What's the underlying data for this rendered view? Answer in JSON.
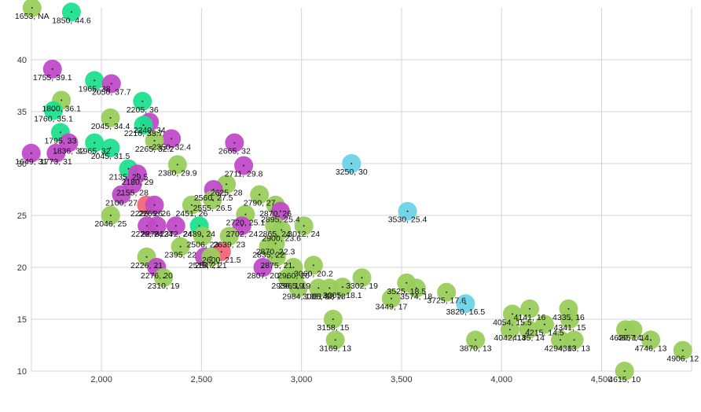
{
  "chart_data": {
    "type": "scatter",
    "title": "",
    "xlabel": "",
    "ylabel": "",
    "xlim": [
      1650,
      4950
    ],
    "ylim": [
      10,
      45
    ],
    "grid": true,
    "legend": "none",
    "x_ticks": [
      {
        "value": 2000,
        "label": "2,000"
      },
      {
        "value": 2500,
        "label": "2,500"
      },
      {
        "value": 3000,
        "label": "3,000"
      },
      {
        "value": 3500,
        "label": "3,500"
      },
      {
        "value": 4000,
        "label": "4,000"
      },
      {
        "value": 4500,
        "label": "4,500"
      }
    ],
    "y_ticks": [
      {
        "value": 10,
        "label": "10"
      },
      {
        "value": 15,
        "label": "15"
      },
      {
        "value": 20,
        "label": "20"
      },
      {
        "value": 25,
        "label": "25"
      },
      {
        "value": 30,
        "label": "30"
      },
      {
        "value": 35,
        "label": "35"
      },
      {
        "value": 40,
        "label": "40"
      }
    ],
    "colors": {
      "green": "#9acd5c",
      "teal": "#1ee08e",
      "purple": "#c04bc8",
      "cyan": "#6dd3e8",
      "red": "#f26678"
    },
    "points": [
      {
        "x": 1653,
        "y": 45,
        "label": "1653, NA",
        "color": "green"
      },
      {
        "x": 1850,
        "y": 44.6,
        "label": "1850, 44.6",
        "color": "teal"
      },
      {
        "x": 1755,
        "y": 39.1,
        "label": "1755, 39.1",
        "color": "purple"
      },
      {
        "x": 1965,
        "y": 38,
        "label": "1965, 38",
        "color": "teal"
      },
      {
        "x": 2050,
        "y": 37.7,
        "label": "2050, 37.7",
        "color": "purple"
      },
      {
        "x": 1800,
        "y": 36.1,
        "label": "1800, 36.1",
        "color": "green"
      },
      {
        "x": 1760,
        "y": 35.1,
        "label": "1760, 35.1",
        "color": "teal"
      },
      {
        "x": 2205,
        "y": 36,
        "label": "2205, 36",
        "color": "teal"
      },
      {
        "x": 2045,
        "y": 34.4,
        "label": "2045, 34.4",
        "color": "green"
      },
      {
        "x": 2240,
        "y": 34,
        "label": "2240, 34",
        "color": "purple"
      },
      {
        "x": 2210,
        "y": 33.7,
        "label": "2210, 33.7",
        "color": "teal"
      },
      {
        "x": 1795,
        "y": 33,
        "label": "1795, 33",
        "color": "teal"
      },
      {
        "x": 2350,
        "y": 32.4,
        "label": "2350, 32.4",
        "color": "purple"
      },
      {
        "x": 2265,
        "y": 32.2,
        "label": "2265, 32.2",
        "color": "green"
      },
      {
        "x": 1965,
        "y": 32,
        "label": "1965, 32",
        "color": "teal"
      },
      {
        "x": 1836,
        "y": 32,
        "label": "1836, 32",
        "color": "purple"
      },
      {
        "x": 2665,
        "y": 32,
        "label": "2665, 32",
        "color": "purple"
      },
      {
        "x": 2045,
        "y": 31.5,
        "label": "2045, 31.5",
        "color": "teal"
      },
      {
        "x": 1649,
        "y": 31,
        "label": "1649, 31",
        "color": "purple"
      },
      {
        "x": 1773,
        "y": 31,
        "label": "1773, 31",
        "color": "purple"
      },
      {
        "x": 2380,
        "y": 29.9,
        "label": "2380, 29.9",
        "color": "green"
      },
      {
        "x": 2711,
        "y": 29.8,
        "label": "2711, 29.8",
        "color": "purple"
      },
      {
        "x": 3250,
        "y": 30,
        "label": "3250, 30",
        "color": "cyan"
      },
      {
        "x": 2135,
        "y": 29.5,
        "label": "2135, 29.5",
        "color": "teal"
      },
      {
        "x": 2180,
        "y": 29,
        "label": "2180, 29",
        "color": "purple"
      },
      {
        "x": 2155,
        "y": 28,
        "label": "2155, 28",
        "color": "purple"
      },
      {
        "x": 2625,
        "y": 28,
        "label": "2625, 28",
        "color": "green"
      },
      {
        "x": 2560,
        "y": 27.5,
        "label": "2560, 27.5",
        "color": "purple"
      },
      {
        "x": 2100,
        "y": 27,
        "label": "2100, 27",
        "color": "purple"
      },
      {
        "x": 2790,
        "y": 27,
        "label": "2790, 27",
        "color": "green"
      },
      {
        "x": 2555,
        "y": 26.5,
        "label": "2555, 26.5",
        "color": "green"
      },
      {
        "x": 2225,
        "y": 26,
        "label": "2225, 26",
        "color": "red"
      },
      {
        "x": 2265,
        "y": 26,
        "label": "2265, 26",
        "color": "purple"
      },
      {
        "x": 2451,
        "y": 26,
        "label": "2451, 26",
        "color": "green"
      },
      {
        "x": 2870,
        "y": 26,
        "label": "2870, 26",
        "color": "green"
      },
      {
        "x": 2046,
        "y": 25,
        "label": "2046, 25",
        "color": "green"
      },
      {
        "x": 2895,
        "y": 25.4,
        "label": "2895, 25.4",
        "color": "purple"
      },
      {
        "x": 3530,
        "y": 25.4,
        "label": "3530, 25.4",
        "color": "cyan"
      },
      {
        "x": 2720,
        "y": 25.1,
        "label": "2720, 25.1",
        "color": "green"
      },
      {
        "x": 2228,
        "y": 24,
        "label": "2228, 24",
        "color": "purple"
      },
      {
        "x": 2278,
        "y": 24,
        "label": "2278, 24",
        "color": "purple"
      },
      {
        "x": 2372,
        "y": 24,
        "label": "2372, 24",
        "color": "purple"
      },
      {
        "x": 2489,
        "y": 24,
        "label": "2489, 24",
        "color": "teal"
      },
      {
        "x": 2702,
        "y": 24,
        "label": "2702, 24",
        "color": "purple"
      },
      {
        "x": 2865,
        "y": 24,
        "label": "2865, 24",
        "color": "green"
      },
      {
        "x": 3012,
        "y": 24,
        "label": "3012, 24",
        "color": "green"
      },
      {
        "x": 2900,
        "y": 23.6,
        "label": "2900, 23.6",
        "color": "green"
      },
      {
        "x": 2506,
        "y": 23,
        "label": "2506, 23",
        "color": "green"
      },
      {
        "x": 2639,
        "y": 23,
        "label": "2639, 23",
        "color": "green"
      },
      {
        "x": 2395,
        "y": 22,
        "label": "2395, 22",
        "color": "green"
      },
      {
        "x": 2835,
        "y": 22,
        "label": "2835, 22",
        "color": "green"
      },
      {
        "x": 2870,
        "y": 22.3,
        "label": "2870, 22.3",
        "color": "green"
      },
      {
        "x": 2600,
        "y": 21.5,
        "label": "2600, 21.5",
        "color": "red"
      },
      {
        "x": 2515,
        "y": 21,
        "label": "2515, 21",
        "color": "purple"
      },
      {
        "x": 2547,
        "y": 21,
        "label": "2547, 21",
        "color": "green"
      },
      {
        "x": 2226,
        "y": 21,
        "label": "2226, 21",
        "color": "green"
      },
      {
        "x": 2875,
        "y": 21,
        "label": "2875, 21",
        "color": "green"
      },
      {
        "x": 2276,
        "y": 20,
        "label": "2276, 20",
        "color": "purple"
      },
      {
        "x": 2807,
        "y": 20,
        "label": "2807, 20",
        "color": "purple"
      },
      {
        "x": 2960,
        "y": 20,
        "label": "2960, 20",
        "color": "green"
      },
      {
        "x": 3060,
        "y": 20.2,
        "label": "3060, 20.2",
        "color": "green"
      },
      {
        "x": 2965,
        "y": 19,
        "label": "2965, 19",
        "color": "green"
      },
      {
        "x": 2930,
        "y": 19,
        "label": "2930, 19",
        "color": "green"
      },
      {
        "x": 2310,
        "y": 19,
        "label": "2310, 19",
        "color": "green"
      },
      {
        "x": 3302,
        "y": 19,
        "label": "3302, 19",
        "color": "green"
      },
      {
        "x": 3525,
        "y": 18.5,
        "label": "3525, 18.5",
        "color": "green"
      },
      {
        "x": 2984,
        "y": 18,
        "label": "2984, 18",
        "color": "green"
      },
      {
        "x": 3085,
        "y": 18,
        "label": "3085, 18",
        "color": "green"
      },
      {
        "x": 3140,
        "y": 18,
        "label": "3140, 18",
        "color": "green"
      },
      {
        "x": 3205,
        "y": 18.1,
        "label": "3205, 18.1",
        "color": "green"
      },
      {
        "x": 3574,
        "y": 18,
        "label": "3574, 18",
        "color": "green"
      },
      {
        "x": 3449,
        "y": 17,
        "label": "3449, 17",
        "color": "green"
      },
      {
        "x": 3725,
        "y": 17.6,
        "label": "3725, 17.6",
        "color": "green"
      },
      {
        "x": 3820,
        "y": 16.5,
        "label": "3820, 16.5",
        "color": "cyan"
      },
      {
        "x": 4054,
        "y": 15.5,
        "label": "4054, 15.5",
        "color": "green"
      },
      {
        "x": 4141,
        "y": 16,
        "label": "4141, 16",
        "color": "green"
      },
      {
        "x": 4335,
        "y": 16,
        "label": "4335, 16",
        "color": "green"
      },
      {
        "x": 3158,
        "y": 15,
        "label": "3158, 15",
        "color": "green"
      },
      {
        "x": 4215,
        "y": 14.5,
        "label": "4215, 14.5",
        "color": "green"
      },
      {
        "x": 4341,
        "y": 15,
        "label": "4341, 15",
        "color": "green"
      },
      {
        "x": 4042,
        "y": 14,
        "label": "4042, 14",
        "color": "green"
      },
      {
        "x": 4135,
        "y": 14,
        "label": "4135, 14",
        "color": "green"
      },
      {
        "x": 4657,
        "y": 14,
        "label": "4657, 14",
        "color": "green"
      },
      {
        "x": 4620,
        "y": 14,
        "label": "4620, 14",
        "color": "green"
      },
      {
        "x": 3169,
        "y": 13,
        "label": "3169, 13",
        "color": "green"
      },
      {
        "x": 3870,
        "y": 13,
        "label": "3870, 13",
        "color": "green"
      },
      {
        "x": 4294,
        "y": 13,
        "label": "4294, 13",
        "color": "green"
      },
      {
        "x": 4363,
        "y": 13,
        "label": "4363, 13",
        "color": "green"
      },
      {
        "x": 4746,
        "y": 13,
        "label": "4746, 13",
        "color": "green"
      },
      {
        "x": 4906,
        "y": 12,
        "label": "4906, 12",
        "color": "green"
      },
      {
        "x": 4615,
        "y": 10,
        "label": "4615, 10",
        "color": "green"
      }
    ]
  }
}
